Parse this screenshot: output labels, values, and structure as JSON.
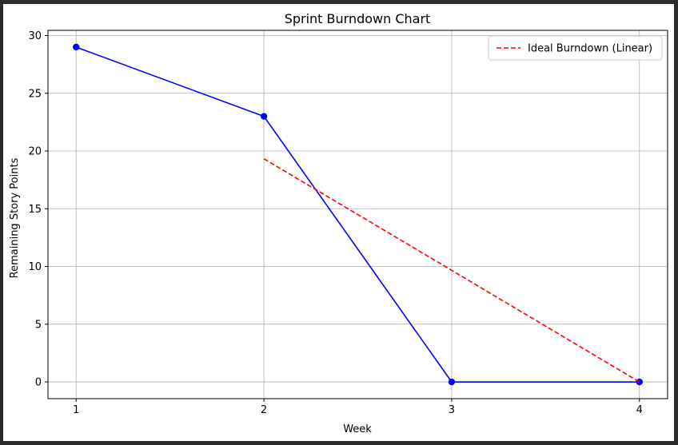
{
  "chart_data": {
    "type": "line",
    "title": "Sprint Burndown Chart",
    "xlabel": "Week",
    "ylabel": "Remaining Story Points",
    "xlim": [
      0.85,
      4.15
    ],
    "ylim": [
      -1.45,
      30.45
    ],
    "xticks": [
      1,
      2,
      3,
      4
    ],
    "yticks": [
      0,
      5,
      10,
      15,
      20,
      25,
      30
    ],
    "grid": true,
    "legend_position": "top-right",
    "series": [
      {
        "x": [
          1,
          2,
          3,
          4
        ],
        "values": [
          29,
          23,
          0,
          0
        ],
        "color": "#0000ff",
        "style": "solid",
        "markers": true
      },
      {
        "name": "Ideal Burndown (Linear)",
        "x": [
          2,
          4
        ],
        "values": [
          19.33,
          0
        ],
        "color": "#ff0000",
        "style": "dashed",
        "markers": false
      }
    ]
  }
}
